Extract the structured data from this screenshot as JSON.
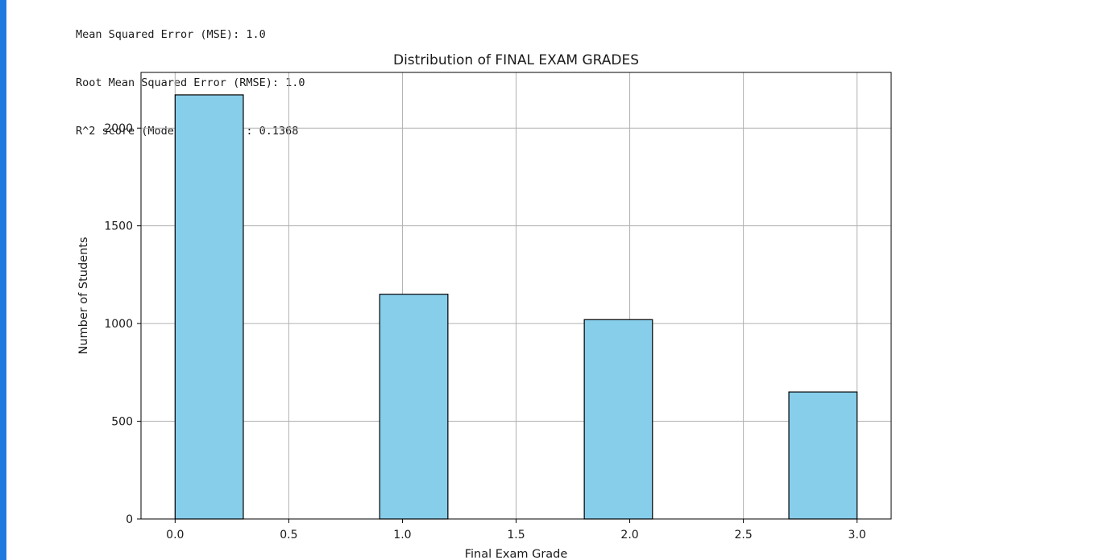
{
  "output": {
    "lines": [
      "Mean Squared Error (MSE): 1.0",
      "Root Mean Squared Error (RMSE): 1.0",
      "R^2 score (Model Accuracy): 0.1368"
    ]
  },
  "colors": {
    "bar_fill": "#87ceeb",
    "bar_edge": "#000000",
    "grid": "#b0b0b0",
    "cell_indicator": "#1f7ae0"
  },
  "chart_data": {
    "type": "bar",
    "title": "Distribution of FINAL EXAM GRADES",
    "xlabel": "Final Exam Grade",
    "ylabel": "Number of Students",
    "bins": [
      {
        "start": 0.0,
        "end": 0.3,
        "count": 2170
      },
      {
        "start": 0.9,
        "end": 1.2,
        "count": 1150
      },
      {
        "start": 1.8,
        "end": 2.1,
        "count": 1020
      },
      {
        "start": 2.7,
        "end": 3.0,
        "count": 650
      }
    ],
    "xlim": [
      -0.15,
      3.15
    ],
    "ylim": [
      0,
      2285
    ],
    "xticks": [
      0.0,
      0.5,
      1.0,
      1.5,
      2.0,
      2.5,
      3.0
    ],
    "xtick_labels": [
      "0.0",
      "0.5",
      "1.0",
      "1.5",
      "2.0",
      "2.5",
      "3.0"
    ],
    "yticks": [
      0,
      500,
      1000,
      1500,
      2000
    ],
    "ytick_labels": [
      "0",
      "500",
      "1000",
      "1500",
      "2000"
    ],
    "grid": true
  }
}
